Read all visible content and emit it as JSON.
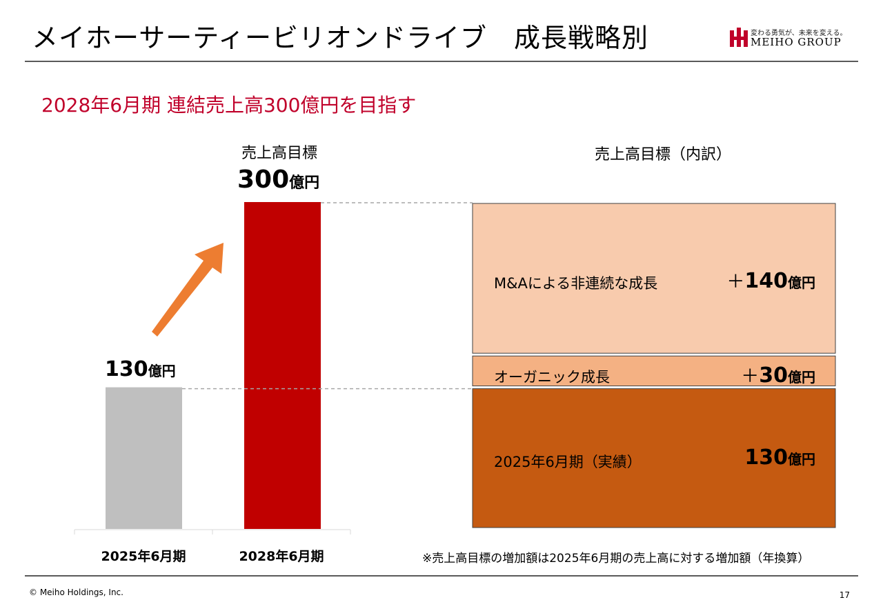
{
  "header": {
    "title": "メイホーサーティービリオンドライブ　成長戦略別",
    "logo_tagline": "変わる勇気が、未来を変える。",
    "logo_brand": "MEIHO GROUP",
    "brand_color": "#c0002a"
  },
  "subtitle": "2028年6月期 連結売上高300億円を目指す",
  "left_chart_labels": {
    "target_label": "売上高目標",
    "target_value": "300",
    "target_unit": "億円",
    "base_value": "130",
    "base_unit": "億円"
  },
  "breakdown": {
    "title": "売上高目標（内訳）",
    "segments": [
      {
        "label": "M&Aによる非連続な成長",
        "sign": "＋",
        "value": "140",
        "unit": "億円"
      },
      {
        "label": "オーガニック成長",
        "sign": "＋",
        "value": "30",
        "unit": "億円"
      },
      {
        "label": "2025年6月期（実績）",
        "sign": "",
        "value": "130",
        "unit": "億円"
      }
    ]
  },
  "note": "※売上高目標の増加額は2025年6月期の売上高に対する増加額（年換算）",
  "footer": {
    "copyright": "© Meiho Holdings, Inc.",
    "page": "17"
  },
  "chart_data": [
    {
      "type": "bar",
      "title": "",
      "categories": [
        "2025年6月期",
        "2028年6月期"
      ],
      "values": [
        130,
        300
      ],
      "unit": "億円",
      "colors": [
        "#bfbfbf",
        "#c00000"
      ],
      "ylim": [
        0,
        300
      ]
    },
    {
      "type": "bar",
      "stacked": true,
      "title": "売上高目標（内訳）",
      "categories": [
        "売上高目標"
      ],
      "series": [
        {
          "name": "2025年6月期（実績）",
          "values": [
            130
          ],
          "color": "#c55a11"
        },
        {
          "name": "オーガニック成長",
          "values": [
            30
          ],
          "color": "#f4b183"
        },
        {
          "name": "M&Aによる非連続な成長",
          "values": [
            140
          ],
          "color": "#f8cbad"
        }
      ],
      "unit": "億円",
      "ylim": [
        0,
        300
      ]
    }
  ]
}
